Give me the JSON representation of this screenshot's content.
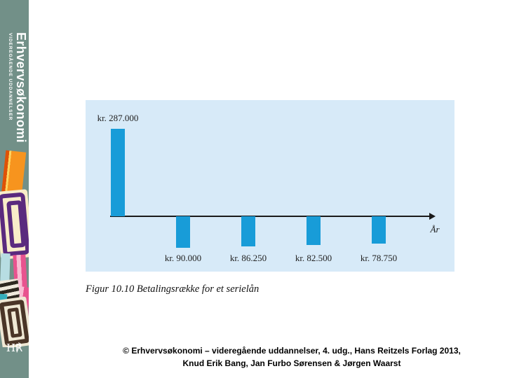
{
  "page": {
    "background": "#ffffff"
  },
  "sidebar": {
    "background_color": "#729088",
    "title": "Erhvervsøkonomi",
    "subtitle": "VIDEREGÅENDE UDDANNELSER",
    "publisher_logo_text": "H℟",
    "artwork_colors": {
      "orange": "#f7941e",
      "dark_orange": "#df5206",
      "yellow": "#ffd45e",
      "cream": "#f8edc9",
      "purple": "#5a2a7e",
      "magenta": "#cf2f66",
      "pink": "#e8538f",
      "light_pink": "#f9bcd3",
      "pale_blue": "#b7dde2",
      "teal": "#35aebc",
      "brown": "#4a3527"
    }
  },
  "chart_data": {
    "type": "bar",
    "title": "Betalingsrække for et serielån",
    "xlabel": "År",
    "ylabel": "",
    "currency_unit": "kr.",
    "x": [
      0,
      1,
      2,
      3,
      4
    ],
    "values": [
      287000,
      -90000,
      -86250,
      -82500,
      -78750
    ],
    "point_labels": [
      "kr. 287.000",
      "kr. 90.000",
      "kr. 86.250",
      "kr. 82.500",
      "kr. 78.750"
    ],
    "baseline": 0,
    "grid": false,
    "legend": false,
    "bar_color": "#189cd8",
    "panel_background": "#d7eaf8",
    "axis_color": "#1a1a1a"
  },
  "figure": {
    "caption": "Figur 10.10 Betalingsrække for et serielån"
  },
  "footer": {
    "line1": "© Erhvervsøkonomi – videregående uddannelser, 4. udg., Hans Reitzels Forlag 2013,",
    "line2": "Knud Erik Bang, Jan Furbo Sørensen & Jørgen Waarst"
  }
}
